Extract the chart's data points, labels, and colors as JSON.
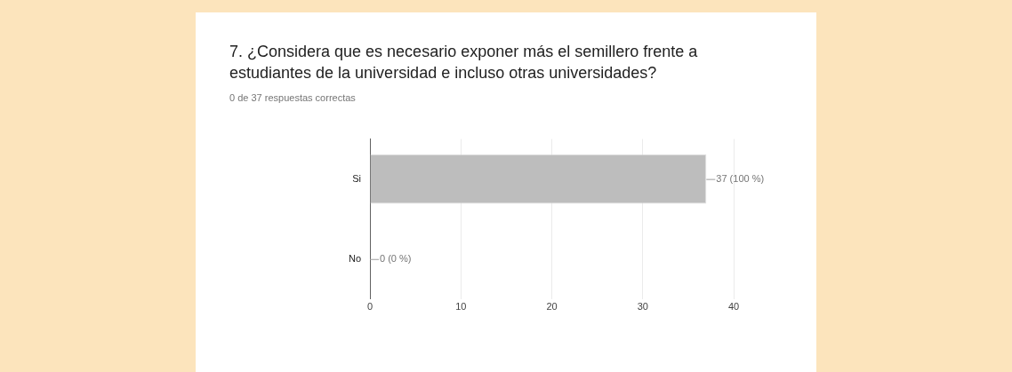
{
  "chart_data": {
    "type": "bar",
    "orientation": "horizontal",
    "title": "7. ¿Considera que es necesario exponer más el semillero frente a estudiantes de la universidad e incluso otras universidades?",
    "subtitle": "0 de 37 respuestas correctas",
    "categories": [
      "Si",
      "No"
    ],
    "values": [
      37,
      0
    ],
    "color": "#bdbdbd",
    "value_labels": [
      "37 (100 %)",
      "0 (0 %)"
    ],
    "xlim": [
      0,
      40
    ],
    "xticks": [
      0,
      10,
      20,
      30,
      40
    ],
    "grid": "x",
    "legend": false
  }
}
